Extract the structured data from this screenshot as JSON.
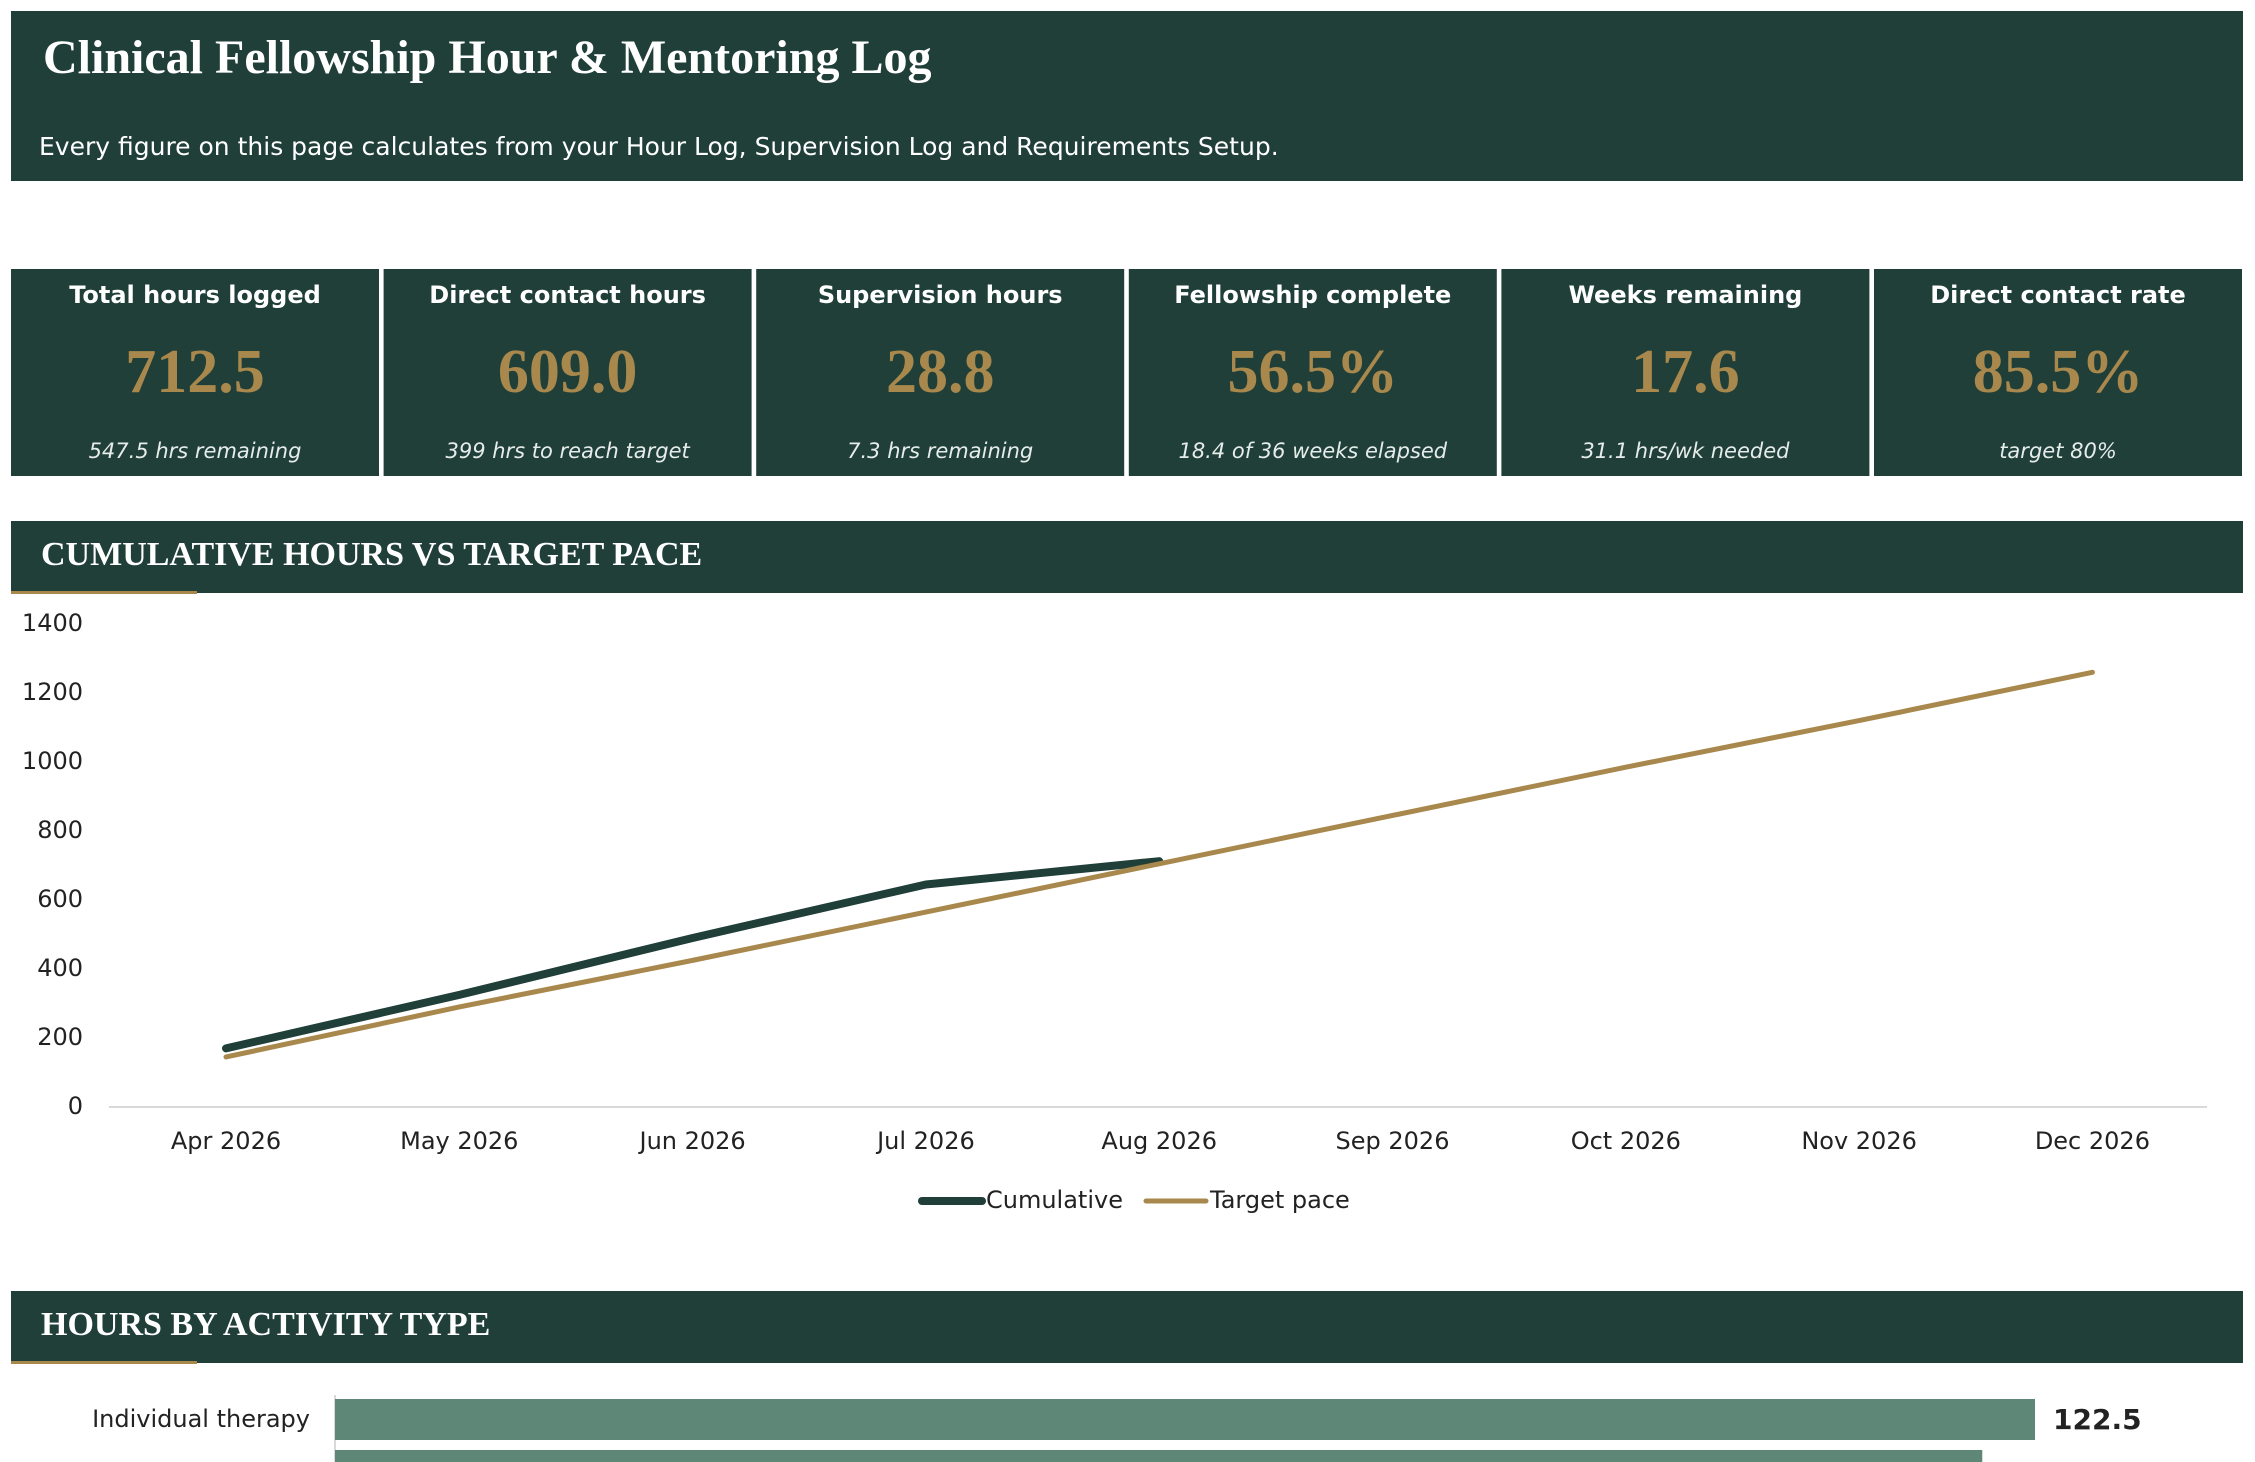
{
  "header": {
    "title": "Clinical Fellowship Hour & Mentoring Log",
    "subtitle": "Every figure on this page calculates from your Hour Log, Supervision Log and Requirements Setup."
  },
  "kpis": [
    {
      "label": "Total hours logged",
      "value": "712.5",
      "note": "547.5 hrs remaining"
    },
    {
      "label": "Direct contact hours",
      "value": "609.0",
      "note": "399 hrs to reach target"
    },
    {
      "label": "Supervision hours",
      "value": "28.8",
      "note": "7.3 hrs remaining"
    },
    {
      "label": "Fellowship complete",
      "value": "56.5%",
      "note": "18.4 of 36 weeks elapsed"
    },
    {
      "label": "Weeks remaining",
      "value": "17.6",
      "note": "31.1 hrs/wk needed"
    },
    {
      "label": "Direct contact rate",
      "value": "85.5%",
      "note": "target 80%"
    }
  ],
  "chart_data": [
    {
      "type": "line",
      "title": "CUMULATIVE HOURS VS TARGET PACE",
      "categories": [
        "Apr 2026",
        "May 2026",
        "Jun 2026",
        "Jul 2026",
        "Aug 2026",
        "Sep 2026",
        "Oct 2026",
        "Nov 2026",
        "Dec 2026"
      ],
      "series": [
        {
          "name": "Cumulative",
          "color": "#1f3f38",
          "values": [
            170,
            325,
            490,
            645,
            712.5,
            null,
            null,
            null,
            null
          ]
        },
        {
          "name": "Target pace",
          "color": "#a8884c",
          "values": [
            145,
            290,
            425,
            565,
            705,
            845,
            985,
            1120,
            1260
          ]
        }
      ],
      "ylim": [
        0,
        1400
      ],
      "yticks": [
        0,
        200,
        400,
        600,
        800,
        1000,
        1200,
        1400
      ],
      "legend": "bottom"
    },
    {
      "type": "hbar",
      "title": "HOURS BY ACTIVITY TYPE",
      "categories": [
        "Individual therapy",
        null
      ],
      "values": [
        122.5,
        118.7
      ],
      "value_labels": [
        "122.5",
        null
      ],
      "color": "#5f8777"
    }
  ]
}
